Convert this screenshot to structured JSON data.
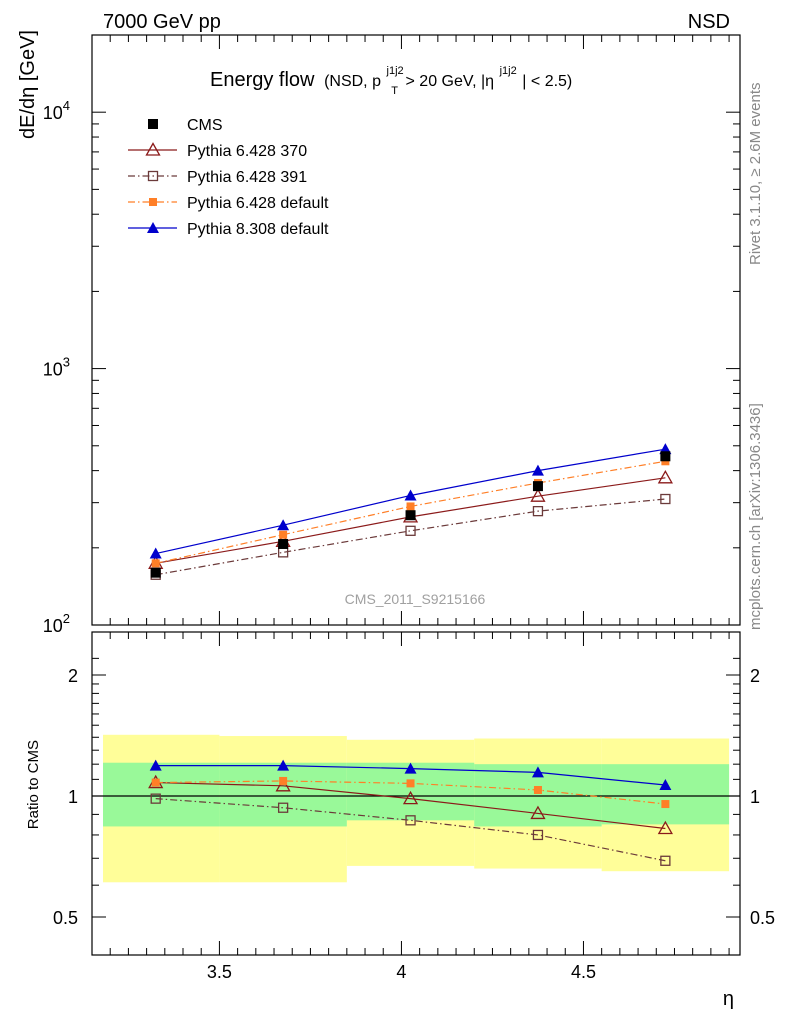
{
  "header": {
    "left": "7000 GeV pp",
    "right": "NSD"
  },
  "side": {
    "rivet": "Rivet 3.1.10, ≥ 2.6M events",
    "mcplots": "mcplots.cern.ch [arXiv:1306.3436]"
  },
  "watermark": "CMS_2011_S9215166",
  "title": {
    "main": "Energy flow",
    "p": "(NSD, p",
    "sup1": "j1j2",
    "sub1": "T",
    "mid": " > 20 GeV, |η",
    "sup2": "j1j2",
    "end": "| < 2.5)"
  },
  "colors": {
    "cms": "#000000",
    "p370": "#8b1a1a",
    "p391": "#6b3a3a",
    "p6def": "#ff7f27",
    "p8def": "#0000cc",
    "band_green": "#99f999",
    "band_yellow": "#fffe99"
  },
  "chart_data": [
    {
      "type": "line",
      "panel": "main",
      "ylabel": "dE/dη [GeV]",
      "yscale": "log",
      "ylim": [
        100,
        20000
      ],
      "xlim": [
        3.15,
        4.93
      ],
      "y_ticks": [
        {
          "value": 100,
          "base": "10",
          "exp": "2"
        },
        {
          "value": 1000,
          "base": "10",
          "exp": "3"
        },
        {
          "value": 10000,
          "base": "10",
          "exp": "4"
        }
      ],
      "x": [
        3.325,
        3.675,
        4.025,
        4.375,
        4.725
      ],
      "series": [
        {
          "name": "CMS",
          "key": "cms",
          "values": [
            160,
            207,
            268,
            348,
            455
          ],
          "marker": "square-filled",
          "line": "none"
        },
        {
          "name": "Pythia 6.428 370",
          "key": "p370",
          "values": [
            174,
            212,
            264,
            318,
            375
          ],
          "marker": "triangle-open",
          "line": "solid"
        },
        {
          "name": "Pythia 6.428 391",
          "key": "p391",
          "values": [
            157,
            192,
            233,
            278,
            310
          ],
          "marker": "square-open",
          "line": "dashdot"
        },
        {
          "name": "Pythia 6.428 default",
          "key": "p6def",
          "values": [
            174,
            225,
            290,
            358,
            435
          ],
          "marker": "square-filled-small",
          "line": "dashdot"
        },
        {
          "name": "Pythia 8.308 default",
          "key": "p8def",
          "values": [
            190,
            245,
            320,
            400,
            485
          ],
          "marker": "triangle-filled",
          "line": "solid"
        }
      ]
    },
    {
      "type": "line",
      "panel": "ratio",
      "xlabel": "η",
      "ylabel": "Ratio to CMS",
      "yscale": "log",
      "ylim": [
        0.4,
        2.4
      ],
      "x_ticks": [
        "3.5",
        "4",
        "4.5"
      ],
      "y_ticks": [
        "0.5",
        "1",
        "2"
      ],
      "bins": [
        [
          3.15,
          3.5
        ],
        [
          3.5,
          3.85
        ],
        [
          3.85,
          4.2
        ],
        [
          4.2,
          4.55
        ],
        [
          4.55,
          4.9
        ]
      ],
      "band_green": [
        [
          0.84,
          1.21
        ],
        [
          0.84,
          1.21
        ],
        [
          0.87,
          1.21
        ],
        [
          0.84,
          1.2
        ],
        [
          0.85,
          1.2
        ]
      ],
      "band_yellow": [
        [
          0.61,
          1.42
        ],
        [
          0.61,
          1.41
        ],
        [
          0.67,
          1.38
        ],
        [
          0.66,
          1.39
        ],
        [
          0.65,
          1.39
        ]
      ],
      "x": [
        3.325,
        3.675,
        4.025,
        4.375,
        4.725
      ],
      "series": [
        {
          "name": "Pythia 6.428 370",
          "key": "p370",
          "values": [
            1.08,
            1.06,
            0.985,
            0.905,
            0.83
          ],
          "marker": "triangle-open",
          "line": "solid"
        },
        {
          "name": "Pythia 6.428 391",
          "key": "p391",
          "values": [
            0.985,
            0.935,
            0.87,
            0.8,
            0.69
          ],
          "marker": "square-open",
          "line": "dashdot"
        },
        {
          "name": "Pythia 6.428 default",
          "key": "p6def",
          "values": [
            1.08,
            1.09,
            1.075,
            1.035,
            0.955
          ],
          "marker": "square-filled-small",
          "line": "dashdot"
        },
        {
          "name": "Pythia 8.308 default",
          "key": "p8def",
          "values": [
            1.19,
            1.19,
            1.17,
            1.145,
            1.065
          ],
          "marker": "triangle-filled",
          "line": "solid"
        }
      ]
    }
  ]
}
